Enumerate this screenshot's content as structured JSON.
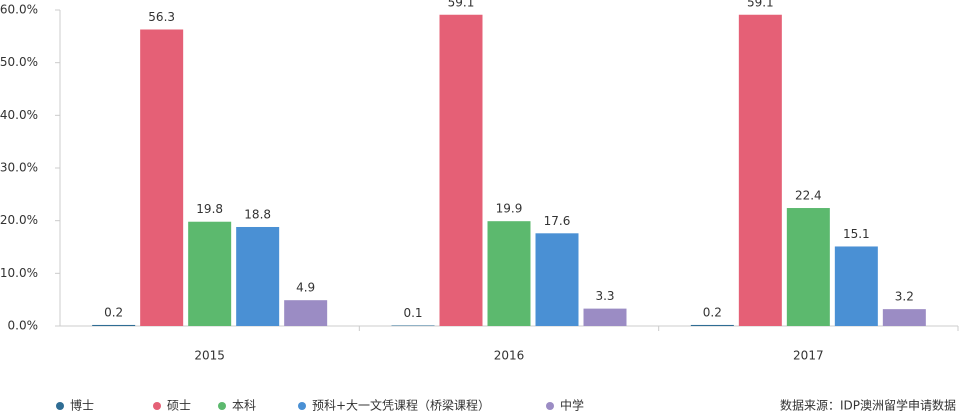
{
  "chart_data": {
    "type": "bar",
    "categories": [
      "2015",
      "2016",
      "2017"
    ],
    "series": [
      {
        "name": "博士",
        "color": "#2f6d94",
        "values": [
          0.2,
          0.1,
          0.2
        ]
      },
      {
        "name": "硕士",
        "color": "#e56076",
        "values": [
          56.3,
          59.1,
          59.1
        ]
      },
      {
        "name": "本科",
        "color": "#5cb96e",
        "values": [
          19.8,
          19.9,
          22.4
        ]
      },
      {
        "name": "预科+大一文凭课程（桥梁课程）",
        "color": "#4a90d4",
        "values": [
          18.8,
          17.6,
          15.1
        ]
      },
      {
        "name": "中学",
        "color": "#9b8cc4",
        "values": [
          4.9,
          3.3,
          3.2
        ]
      }
    ],
    "ylim": [
      0,
      60
    ],
    "yticks": [
      {
        "value": 0,
        "label": "0.0%"
      },
      {
        "value": 10,
        "label": "10.0%"
      },
      {
        "value": 20,
        "label": "20.0%"
      },
      {
        "value": 30,
        "label": "30.0%"
      },
      {
        "value": 40,
        "label": "40.0%"
      },
      {
        "value": 50,
        "label": "50.0%"
      },
      {
        "value": 60,
        "label": "60.0%"
      }
    ],
    "grid": false,
    "legend": "bottom",
    "source": "数据来源：IDP澳洲留学申请数据"
  }
}
